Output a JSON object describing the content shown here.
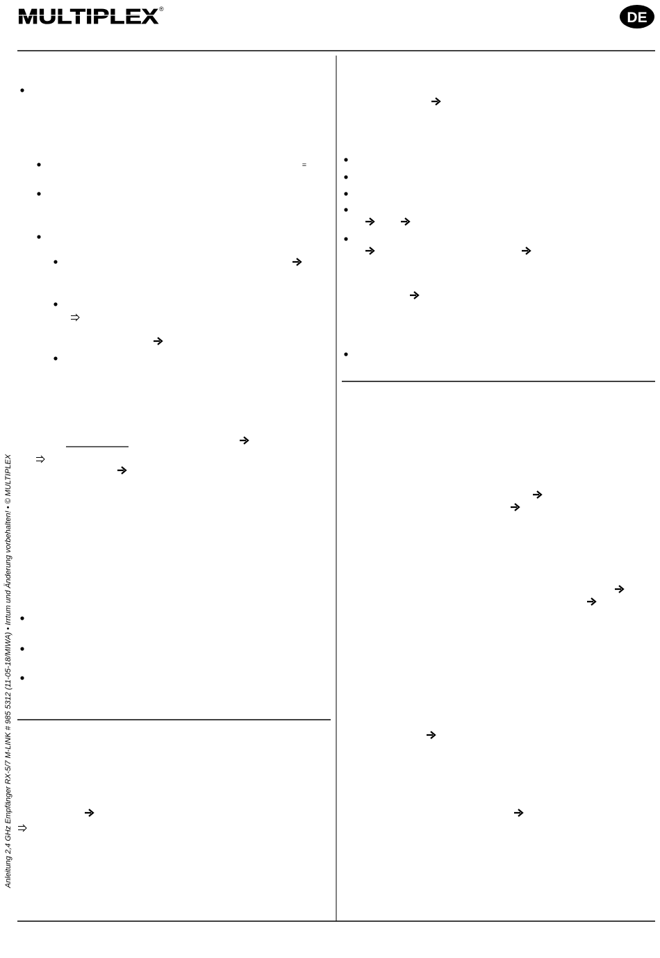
{
  "header": {
    "logo": "MULTIPLEX",
    "registered": "®",
    "language_badge": "DE"
  },
  "side_note": "Anleitung 2,4 GHz Empfänger RX-5/7 M-LINK  # 985 5312 (11-05-18/MIWA)  •  Irrtum und Änderung vorbehalten!  •  © MULTIPLEX",
  "body": {
    "equals_sign": "="
  }
}
